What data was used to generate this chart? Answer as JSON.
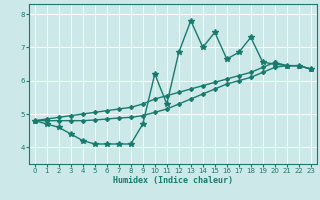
{
  "xlabel": "Humidex (Indice chaleur)",
  "bg_color": "#cce8e8",
  "grid_color": "#ffffff",
  "line_color": "#1a7a6e",
  "xlim": [
    -0.5,
    23.5
  ],
  "ylim": [
    3.5,
    8.3
  ],
  "yticks": [
    4,
    5,
    6,
    7,
    8
  ],
  "xticks": [
    0,
    1,
    2,
    3,
    4,
    5,
    6,
    7,
    8,
    9,
    10,
    11,
    12,
    13,
    14,
    15,
    16,
    17,
    18,
    19,
    20,
    21,
    22,
    23
  ],
  "series1_x": [
    0,
    1,
    2,
    3,
    4,
    5,
    6,
    7,
    8,
    9,
    10,
    11,
    12,
    13,
    14,
    15,
    16,
    17,
    18,
    19,
    20,
    21,
    22,
    23
  ],
  "series1_y": [
    4.8,
    4.7,
    4.6,
    4.4,
    4.2,
    4.1,
    4.1,
    4.1,
    4.1,
    4.7,
    6.2,
    5.3,
    6.85,
    7.8,
    7.0,
    7.45,
    6.65,
    6.85,
    7.3,
    6.55,
    6.5,
    6.45,
    6.45,
    6.35
  ],
  "series2_x": [
    0,
    1,
    2,
    3,
    4,
    5,
    6,
    7,
    8,
    9,
    10,
    11,
    12,
    13,
    14,
    15,
    16,
    17,
    18,
    19,
    20,
    21,
    22,
    23
  ],
  "series2_y": [
    4.8,
    4.85,
    4.9,
    4.95,
    5.0,
    5.05,
    5.1,
    5.15,
    5.2,
    5.3,
    5.45,
    5.55,
    5.65,
    5.75,
    5.85,
    5.95,
    6.05,
    6.15,
    6.25,
    6.4,
    6.55,
    6.45,
    6.45,
    6.35
  ],
  "series3_x": [
    0,
    1,
    2,
    3,
    4,
    5,
    6,
    7,
    8,
    9,
    10,
    11,
    12,
    13,
    14,
    15,
    16,
    17,
    18,
    19,
    20,
    21,
    22,
    23
  ],
  "series3_y": [
    4.8,
    4.8,
    4.8,
    4.8,
    4.8,
    4.82,
    4.85,
    4.88,
    4.9,
    4.95,
    5.05,
    5.15,
    5.3,
    5.45,
    5.6,
    5.75,
    5.9,
    6.0,
    6.1,
    6.25,
    6.4,
    6.45,
    6.45,
    6.35
  ]
}
